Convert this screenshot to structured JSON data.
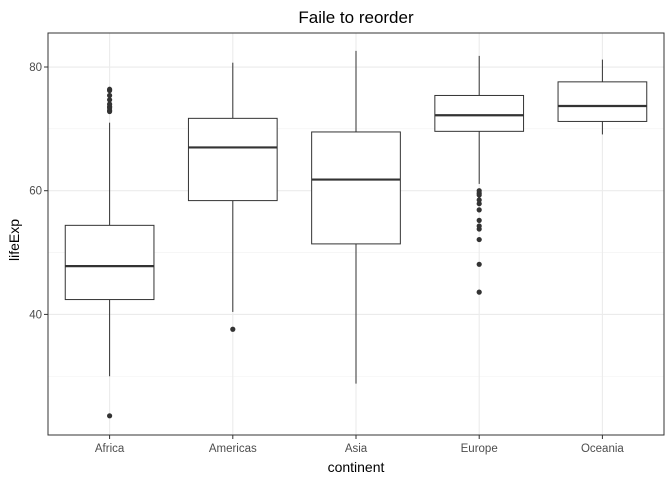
{
  "chart_data": {
    "type": "box",
    "title": "Faile to reorder",
    "xlabel": "continent",
    "ylabel": "lifeExp",
    "ylim": [
      20.5,
      85.5
    ],
    "yticks": [
      40,
      60,
      80
    ],
    "ygrid_minor": [
      30,
      50,
      70
    ],
    "grid": true,
    "legend": "none",
    "categories": [
      "Africa",
      "Americas",
      "Asia",
      "Europe",
      "Oceania"
    ],
    "boxes": [
      {
        "category": "Africa",
        "lower_whisker": 30.0,
        "q1": 42.4,
        "median": 47.8,
        "q3": 54.4,
        "upper_whisker": 71.0,
        "outliers": [
          23.6,
          72.8,
          73.0,
          73.4,
          73.6,
          74.0,
          74.7,
          75.4,
          76.2,
          76.4
        ]
      },
      {
        "category": "Americas",
        "lower_whisker": 40.4,
        "q1": 58.4,
        "median": 67.0,
        "q3": 71.7,
        "upper_whisker": 80.7,
        "outliers": [
          37.6
        ]
      },
      {
        "category": "Asia",
        "lower_whisker": 28.8,
        "q1": 51.4,
        "median": 61.8,
        "q3": 69.5,
        "upper_whisker": 82.6,
        "outliers": []
      },
      {
        "category": "Europe",
        "lower_whisker": 61.1,
        "q1": 69.6,
        "median": 72.2,
        "q3": 75.4,
        "upper_whisker": 81.8,
        "outliers": [
          43.6,
          48.1,
          52.1,
          53.8,
          54.3,
          55.2,
          56.9,
          57.9,
          58.5,
          59.3,
          59.6,
          60.0
        ]
      },
      {
        "category": "Oceania",
        "lower_whisker": 69.1,
        "q1": 71.2,
        "median": 73.7,
        "q3": 77.6,
        "upper_whisker": 81.2,
        "outliers": []
      }
    ]
  }
}
